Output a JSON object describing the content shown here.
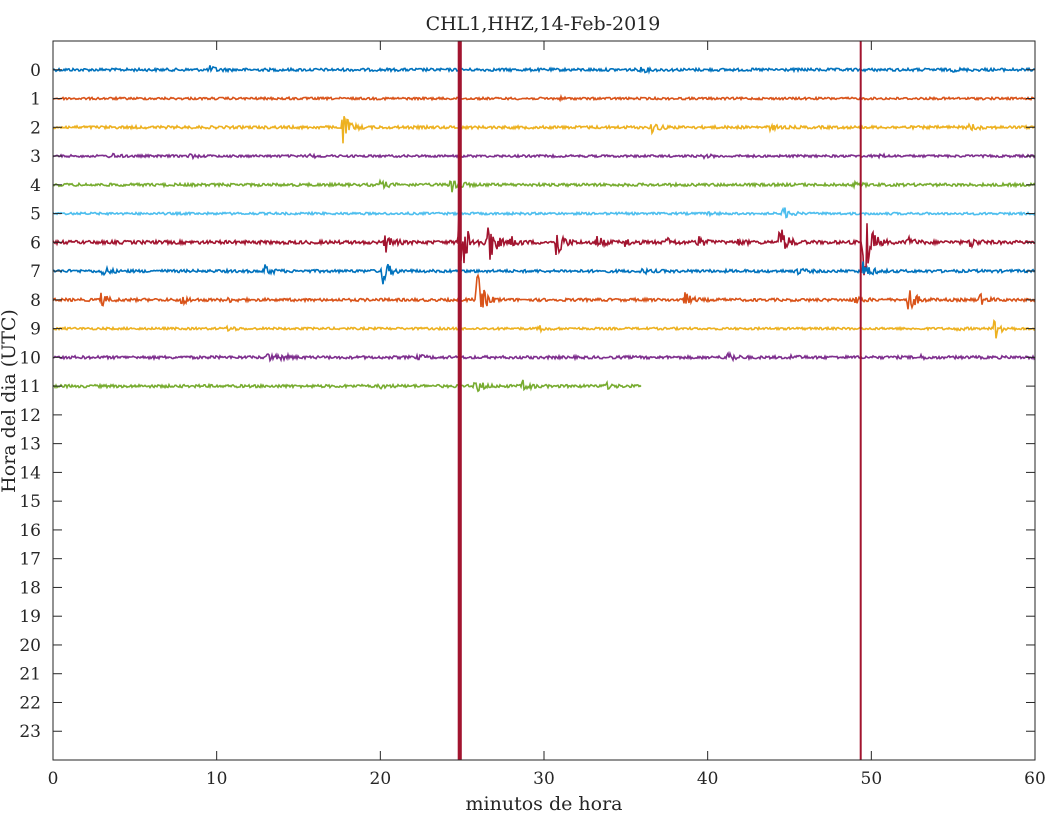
{
  "chart_data": {
    "type": "line",
    "title": "CHL1,HHZ,14-Feb-2019",
    "xlabel": "minutos de hora",
    "ylabel": "Hora del dia (UTC)",
    "xlim": [
      0,
      60
    ],
    "ylim": [
      -1,
      24
    ],
    "y_reversed": true,
    "grid": false,
    "x_ticks": [
      0,
      10,
      20,
      30,
      40,
      50,
      60
    ],
    "y_ticks": [
      0,
      1,
      2,
      3,
      4,
      5,
      6,
      7,
      8,
      9,
      10,
      11,
      12,
      13,
      14,
      15,
      16,
      17,
      18,
      19,
      20,
      21,
      22,
      23
    ],
    "series": [
      {
        "hour": 0,
        "color": "#0072BD",
        "end_minute": 60,
        "noise": 0.05,
        "events": [
          [
            9.6,
            0.12
          ],
          [
            35.9,
            0.1
          ],
          [
            55.0,
            0.04
          ]
        ]
      },
      {
        "hour": 1,
        "color": "#D95319",
        "end_minute": 60,
        "noise": 0.04,
        "events": [
          [
            14.0,
            0.03
          ],
          [
            31.0,
            0.03
          ]
        ]
      },
      {
        "hour": 2,
        "color": "#EDB120",
        "end_minute": 60,
        "noise": 0.05,
        "events": [
          [
            17.7,
            0.55
          ],
          [
            36.6,
            0.2
          ],
          [
            43.8,
            0.1
          ],
          [
            56.0,
            0.15
          ]
        ]
      },
      {
        "hour": 3,
        "color": "#7E2F8E",
        "end_minute": 60,
        "noise": 0.04,
        "events": [
          [
            3.5,
            0.1
          ],
          [
            8.3,
            0.08
          ],
          [
            15.7,
            0.06
          ],
          [
            39.8,
            0.06
          ],
          [
            50.5,
            0.05
          ]
        ]
      },
      {
        "hour": 4,
        "color": "#77AC30",
        "end_minute": 60,
        "noise": 0.05,
        "events": [
          [
            20.0,
            0.15
          ],
          [
            24.3,
            0.45
          ],
          [
            49.0,
            0.06
          ]
        ]
      },
      {
        "hour": 5,
        "color": "#4DBEEE",
        "end_minute": 60,
        "noise": 0.04,
        "events": [
          [
            44.6,
            0.25
          ],
          [
            40.0,
            0.04
          ]
        ]
      },
      {
        "hour": 6,
        "color": "#A2142F",
        "end_minute": 60,
        "noise": 0.06,
        "events": [
          [
            20.3,
            0.35
          ],
          [
            24.8,
            2.0
          ],
          [
            26.5,
            1.1
          ],
          [
            28.0,
            0.2
          ],
          [
            30.7,
            0.7
          ],
          [
            33.2,
            0.25
          ],
          [
            34.9,
            0.15
          ],
          [
            37.5,
            0.15
          ],
          [
            39.3,
            0.25
          ],
          [
            41.8,
            0.1
          ],
          [
            44.4,
            0.65
          ],
          [
            49.5,
            1.8
          ],
          [
            52.2,
            0.2
          ],
          [
            56.0,
            0.2
          ]
        ]
      },
      {
        "hour": 7,
        "color": "#0072BD",
        "end_minute": 60,
        "noise": 0.05,
        "events": [
          [
            3.0,
            0.18
          ],
          [
            12.9,
            0.22
          ],
          [
            20.1,
            0.55
          ],
          [
            36.0,
            0.08
          ],
          [
            45.5,
            0.1
          ],
          [
            49.5,
            0.4
          ]
        ]
      },
      {
        "hour": 8,
        "color": "#D95319",
        "end_minute": 60,
        "noise": 0.05,
        "events": [
          [
            2.9,
            0.25
          ],
          [
            7.8,
            0.18
          ],
          [
            10.6,
            0.08
          ],
          [
            25.9,
            1.0
          ],
          [
            38.6,
            0.25
          ],
          [
            49.0,
            0.15
          ],
          [
            52.2,
            0.6
          ],
          [
            56.6,
            0.2
          ]
        ]
      },
      {
        "hour": 9,
        "color": "#EDB120",
        "end_minute": 60,
        "noise": 0.04,
        "events": [
          [
            10.6,
            0.12
          ],
          [
            29.7,
            0.1
          ],
          [
            55.2,
            0.06
          ],
          [
            57.5,
            0.45
          ]
        ]
      },
      {
        "hour": 10,
        "color": "#7E2F8E",
        "end_minute": 60,
        "noise": 0.05,
        "events": [
          [
            13.1,
            0.2
          ],
          [
            14.0,
            0.1
          ],
          [
            22.3,
            0.08
          ],
          [
            41.2,
            0.22
          ],
          [
            45.0,
            0.08
          ],
          [
            53.0,
            0.05
          ]
        ]
      },
      {
        "hour": 11,
        "color": "#77AC30",
        "end_minute": 35.9,
        "noise": 0.05,
        "events": [
          [
            25.8,
            0.3
          ],
          [
            28.7,
            0.2
          ],
          [
            33.7,
            0.12
          ],
          [
            20.0,
            0.06
          ]
        ]
      }
    ],
    "big_events": [
      {
        "minute": 24.85,
        "color": "#A2142F",
        "from": -1,
        "to": 24,
        "width_minutes": 0.25
      },
      {
        "minute": 49.35,
        "color": "#A2142F",
        "from": -1,
        "to": 24,
        "width_minutes": 0.12
      }
    ]
  }
}
